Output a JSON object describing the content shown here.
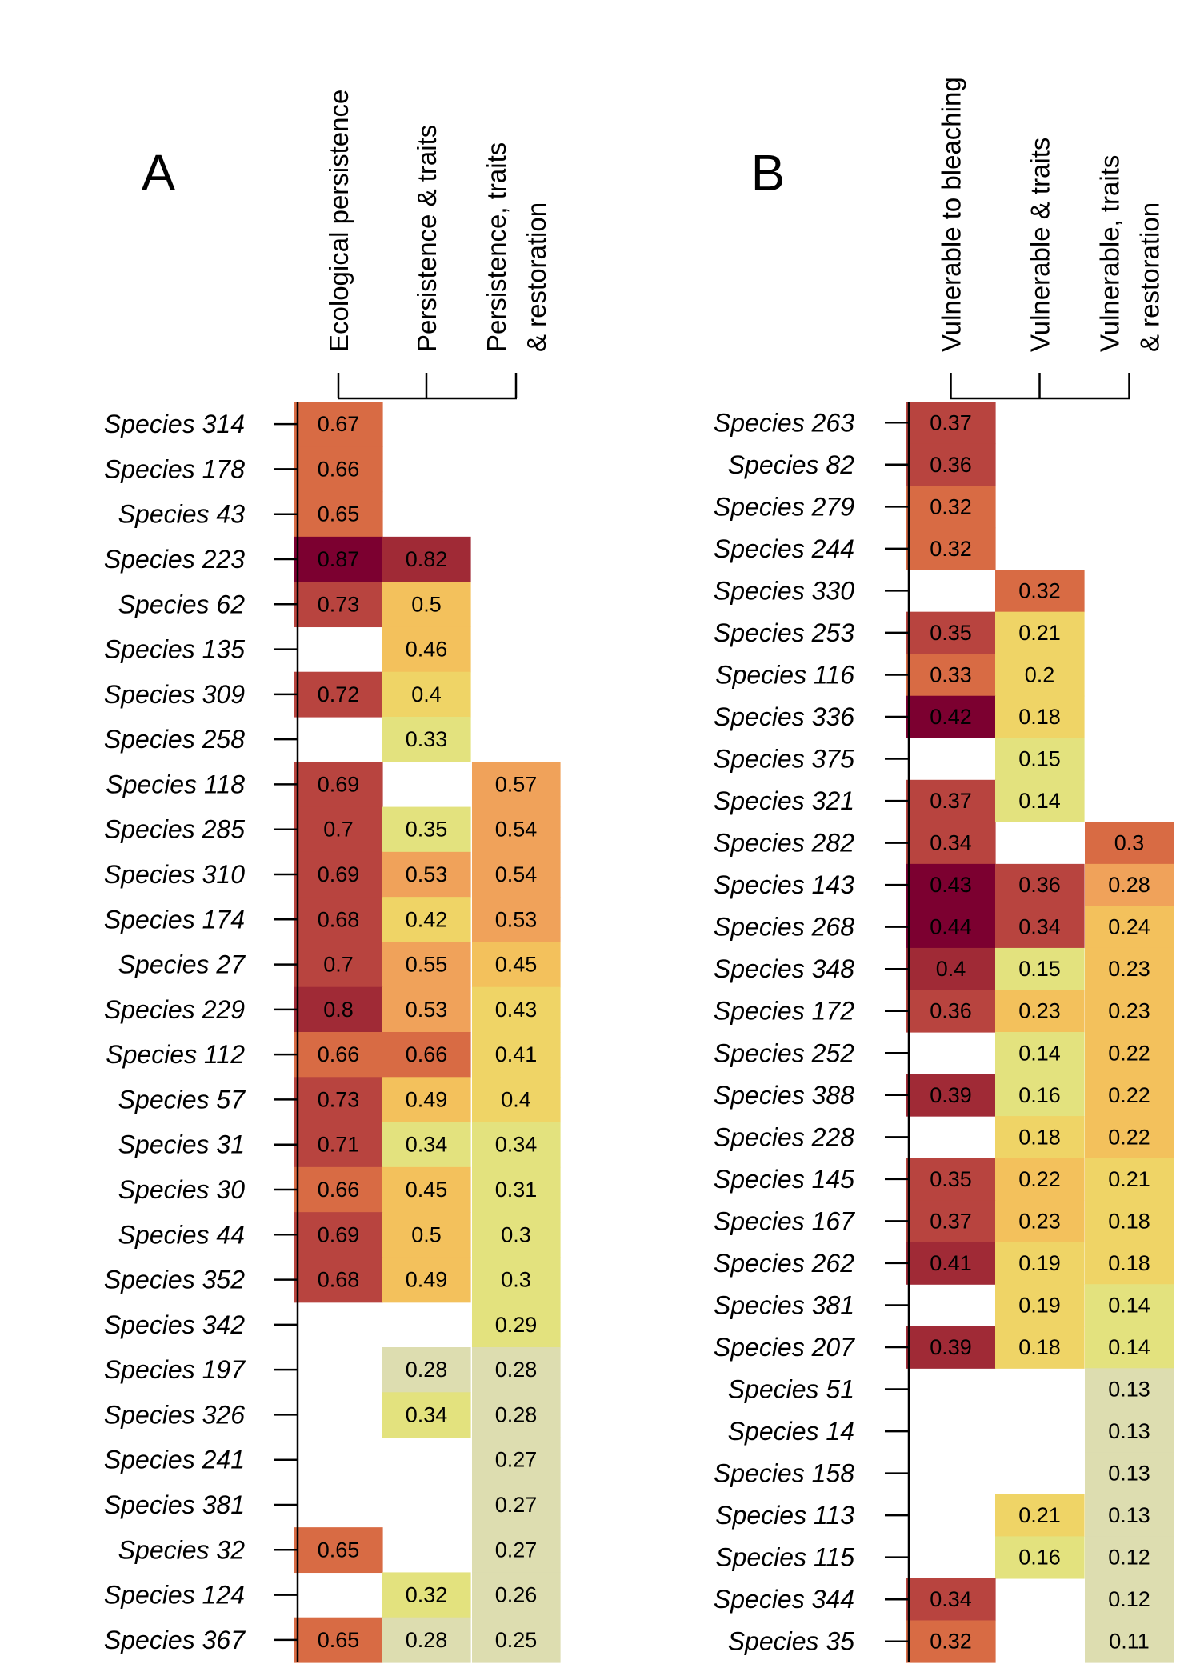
{
  "colors": [
    "#ddddb0",
    "#e3e27e",
    "#efd466",
    "#f3c15c",
    "#f0a25a",
    "#d86b44",
    "#b8443f",
    "#a02a36",
    "#7c0030"
  ],
  "chart_data": [
    {
      "type": "heatmap",
      "panel": "A",
      "columns": [
        "Ecological persistence",
        "Persistence & traits",
        "Persistence, traits & restoration"
      ],
      "rows": [
        {
          "label": "Species 314",
          "values": [
            0.67,
            null,
            null
          ]
        },
        {
          "label": "Species 178",
          "values": [
            0.66,
            null,
            null
          ]
        },
        {
          "label": "Species 43",
          "values": [
            0.65,
            null,
            null
          ]
        },
        {
          "label": "Species 223",
          "values": [
            0.87,
            0.82,
            null
          ]
        },
        {
          "label": "Species 62",
          "values": [
            0.73,
            0.5,
            null
          ]
        },
        {
          "label": "Species 135",
          "values": [
            null,
            0.46,
            null
          ]
        },
        {
          "label": "Species 309",
          "values": [
            0.72,
            0.4,
            null
          ]
        },
        {
          "label": "Species 258",
          "values": [
            null,
            0.33,
            null
          ]
        },
        {
          "label": "Species 118",
          "values": [
            0.69,
            null,
            0.57
          ]
        },
        {
          "label": "Species 285",
          "values": [
            0.7,
            0.35,
            0.54
          ]
        },
        {
          "label": "Species 310",
          "values": [
            0.69,
            0.53,
            0.54
          ]
        },
        {
          "label": "Species 174",
          "values": [
            0.68,
            0.42,
            0.53
          ]
        },
        {
          "label": "Species 27",
          "values": [
            0.7,
            0.55,
            0.45
          ]
        },
        {
          "label": "Species 229",
          "values": [
            0.8,
            0.53,
            0.43
          ]
        },
        {
          "label": "Species 112",
          "values": [
            0.66,
            0.66,
            0.41
          ]
        },
        {
          "label": "Species 57",
          "values": [
            0.73,
            0.49,
            0.4
          ]
        },
        {
          "label": "Species 31",
          "values": [
            0.71,
            0.34,
            0.34
          ]
        },
        {
          "label": "Species 30",
          "values": [
            0.66,
            0.45,
            0.31
          ]
        },
        {
          "label": "Species 44",
          "values": [
            0.69,
            0.5,
            0.3
          ]
        },
        {
          "label": "Species 352",
          "values": [
            0.68,
            0.49,
            0.3
          ]
        },
        {
          "label": "Species 342",
          "values": [
            null,
            null,
            0.29
          ]
        },
        {
          "label": "Species 197",
          "values": [
            null,
            0.28,
            0.28
          ]
        },
        {
          "label": "Species 326",
          "values": [
            null,
            0.34,
            0.28
          ]
        },
        {
          "label": "Species 241",
          "values": [
            null,
            null,
            0.27
          ]
        },
        {
          "label": "Species 381",
          "values": [
            null,
            null,
            0.27
          ]
        },
        {
          "label": "Species 32",
          "values": [
            0.65,
            null,
            0.27
          ]
        },
        {
          "label": "Species 124",
          "values": [
            null,
            0.32,
            0.26
          ]
        },
        {
          "label": "Species 367",
          "values": [
            0.65,
            0.28,
            0.25
          ]
        }
      ]
    },
    {
      "type": "heatmap",
      "panel": "B",
      "columns": [
        "Vulnerable to bleaching",
        "Vulnerable & traits",
        "Vulnerable, traits & restoration"
      ],
      "rows": [
        {
          "label": "Species 263",
          "values": [
            0.37,
            null,
            null
          ]
        },
        {
          "label": "Species 82",
          "values": [
            0.36,
            null,
            null
          ]
        },
        {
          "label": "Species 279",
          "values": [
            0.32,
            null,
            null
          ]
        },
        {
          "label": "Species 244",
          "values": [
            0.32,
            null,
            null
          ]
        },
        {
          "label": "Species 330",
          "values": [
            null,
            0.32,
            null
          ]
        },
        {
          "label": "Species 253",
          "values": [
            0.35,
            0.21,
            null
          ]
        },
        {
          "label": "Species 116",
          "values": [
            0.33,
            0.2,
            null
          ]
        },
        {
          "label": "Species 336",
          "values": [
            0.42,
            0.18,
            null
          ]
        },
        {
          "label": "Species 375",
          "values": [
            null,
            0.15,
            null
          ]
        },
        {
          "label": "Species 321",
          "values": [
            0.37,
            0.14,
            null
          ]
        },
        {
          "label": "Species 282",
          "values": [
            0.34,
            null,
            0.3
          ]
        },
        {
          "label": "Species 143",
          "values": [
            0.43,
            0.36,
            0.28
          ]
        },
        {
          "label": "Species 268",
          "values": [
            0.44,
            0.34,
            0.24
          ]
        },
        {
          "label": "Species 348",
          "values": [
            0.4,
            0.15,
            0.23
          ]
        },
        {
          "label": "Species 172",
          "values": [
            0.36,
            0.23,
            0.23
          ]
        },
        {
          "label": "Species 252",
          "values": [
            null,
            0.14,
            0.22
          ]
        },
        {
          "label": "Species 388",
          "values": [
            0.39,
            0.16,
            0.22
          ]
        },
        {
          "label": "Species 228",
          "values": [
            null,
            0.18,
            0.22
          ]
        },
        {
          "label": "Species 145",
          "values": [
            0.35,
            0.22,
            0.21
          ]
        },
        {
          "label": "Species 167",
          "values": [
            0.37,
            0.23,
            0.18
          ]
        },
        {
          "label": "Species 262",
          "values": [
            0.41,
            0.19,
            0.18
          ]
        },
        {
          "label": "Species 381",
          "values": [
            null,
            0.19,
            0.14
          ]
        },
        {
          "label": "Species 207",
          "values": [
            0.39,
            0.18,
            0.14
          ]
        },
        {
          "label": "Species 51",
          "values": [
            null,
            null,
            0.13
          ]
        },
        {
          "label": "Species 14",
          "values": [
            null,
            null,
            0.13
          ]
        },
        {
          "label": "Species 158",
          "values": [
            null,
            null,
            0.13
          ]
        },
        {
          "label": "Species 113",
          "values": [
            null,
            0.21,
            0.13
          ]
        },
        {
          "label": "Species 115",
          "values": [
            null,
            0.16,
            0.12
          ]
        },
        {
          "label": "Species 344",
          "values": [
            0.34,
            null,
            0.12
          ]
        },
        {
          "label": "Species 35",
          "values": [
            0.32,
            null,
            0.11
          ]
        }
      ]
    }
  ]
}
